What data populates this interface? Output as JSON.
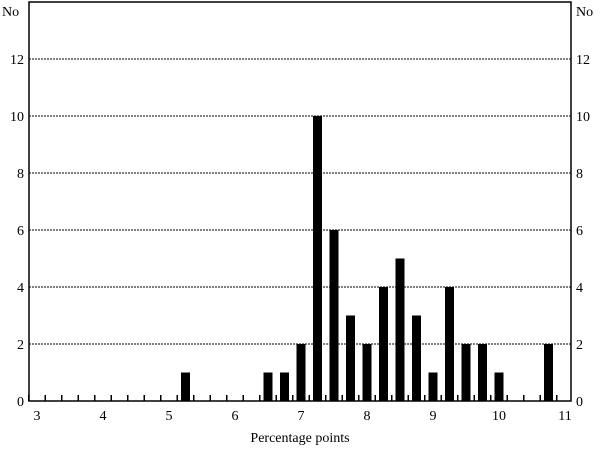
{
  "chart_data": {
    "type": "bar",
    "title": "",
    "xlabel": "Percentage points",
    "ylabel_left": "No",
    "ylabel_right": "No",
    "xlim": [
      2.9,
      11.1
    ],
    "ylim": [
      0,
      14
    ],
    "x_ticks": [
      3,
      4,
      5,
      6,
      7,
      8,
      9,
      10,
      11
    ],
    "y_ticks": [
      0,
      2,
      4,
      6,
      8,
      10,
      12
    ],
    "grid": "horizontal dotted",
    "bar_color": "#000000",
    "bin_width": 0.25,
    "x": [
      5.25,
      6.5,
      6.75,
      7.0,
      7.25,
      7.5,
      7.75,
      8.0,
      8.25,
      8.5,
      8.75,
      9.0,
      9.25,
      9.5,
      9.75,
      10.0,
      10.75
    ],
    "values": [
      1,
      1,
      1,
      2,
      10,
      6,
      3,
      2,
      4,
      5,
      3,
      1,
      4,
      2,
      2,
      1,
      2
    ]
  }
}
